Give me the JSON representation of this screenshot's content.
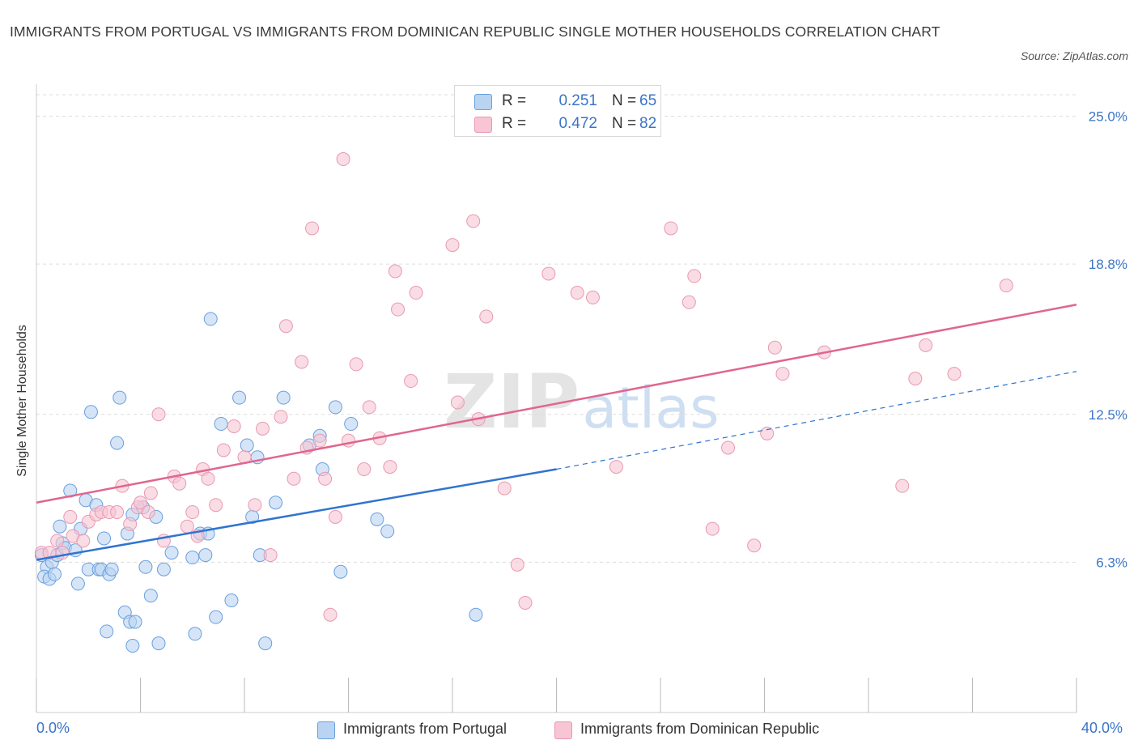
{
  "title": "IMMIGRANTS FROM PORTUGAL VS IMMIGRANTS FROM DOMINICAN REPUBLIC SINGLE MOTHER HOUSEHOLDS CORRELATION CHART",
  "source": "Source: ZipAtlas.com",
  "watermark": {
    "zip": "ZIP",
    "atlas": "atlas"
  },
  "colors": {
    "blue_fill": "#b9d3f2",
    "blue_stroke": "#6a9fdd",
    "blue_line": "#2f74d0",
    "pink_fill": "#f7c5d4",
    "pink_stroke": "#e899b2",
    "pink_line": "#e0668e",
    "tick_label": "#3a74c8",
    "grid": "#dddddd"
  },
  "legend_top": {
    "rows": [
      {
        "r_label": "R =",
        "r_value": "0.251",
        "n_label": "N =",
        "n_value": "65"
      },
      {
        "r_label": "R =",
        "r_value": "0.472",
        "n_label": "N =",
        "n_value": "82"
      }
    ]
  },
  "legend_bottom": {
    "items": [
      {
        "label": "Immigrants from Portugal"
      },
      {
        "label": "Immigrants from Dominican Republic"
      }
    ]
  },
  "chart_data": {
    "type": "scatter",
    "title": "IMMIGRANTS FROM PORTUGAL VS IMMIGRANTS FROM DOMINICAN REPUBLIC SINGLE MOTHER HOUSEHOLDS CORRELATION CHART",
    "xlabel": "",
    "ylabel": "Single Mother Households",
    "xlim": [
      0,
      40
    ],
    "ylim": [
      0,
      25.9
    ],
    "x_tick_labels": [
      {
        "value": 0,
        "label": "0.0%"
      },
      {
        "value": 40,
        "label": "40.0%"
      }
    ],
    "y_ticks": [
      {
        "value": 6.3,
        "label": "6.3%"
      },
      {
        "value": 12.5,
        "label": "12.5%"
      },
      {
        "value": 18.8,
        "label": "18.8%"
      },
      {
        "value": 25.0,
        "label": "25.0%"
      }
    ],
    "grid": true,
    "legend_position": "bottom",
    "series": [
      {
        "name": "Immigrants from Portugal",
        "color": "blue",
        "R": 0.251,
        "N": 65,
        "trend": {
          "x": [
            0,
            20
          ],
          "y": [
            6.4,
            10.2
          ]
        },
        "trend_dashed": {
          "x": [
            20,
            40
          ],
          "y": [
            10.2,
            14.3
          ]
        },
        "points": [
          [
            0.2,
            6.6
          ],
          [
            0.4,
            6.1
          ],
          [
            0.3,
            5.7
          ],
          [
            0.5,
            5.6
          ],
          [
            0.6,
            6.3
          ],
          [
            0.7,
            5.8
          ],
          [
            0.8,
            6.6
          ],
          [
            0.9,
            7.8
          ],
          [
            1.0,
            7.1
          ],
          [
            1.1,
            6.9
          ],
          [
            1.3,
            9.3
          ],
          [
            1.5,
            6.8
          ],
          [
            1.6,
            5.4
          ],
          [
            1.7,
            7.7
          ],
          [
            1.9,
            8.9
          ],
          [
            2.0,
            6.0
          ],
          [
            2.1,
            12.6
          ],
          [
            2.3,
            8.7
          ],
          [
            2.4,
            6.0
          ],
          [
            2.5,
            6.0
          ],
          [
            2.6,
            7.3
          ],
          [
            2.7,
            3.4
          ],
          [
            2.8,
            5.8
          ],
          [
            2.9,
            6.0
          ],
          [
            3.1,
            11.3
          ],
          [
            3.2,
            13.2
          ],
          [
            3.4,
            4.2
          ],
          [
            3.5,
            7.5
          ],
          [
            3.6,
            3.8
          ],
          [
            3.7,
            2.8
          ],
          [
            3.8,
            3.8
          ],
          [
            4.1,
            8.6
          ],
          [
            4.2,
            6.1
          ],
          [
            4.4,
            4.9
          ],
          [
            4.6,
            8.2
          ],
          [
            4.7,
            2.9
          ],
          [
            4.9,
            6.0
          ],
          [
            5.2,
            6.7
          ],
          [
            6.0,
            6.5
          ],
          [
            6.1,
            3.3
          ],
          [
            6.3,
            7.5
          ],
          [
            6.6,
            7.5
          ],
          [
            6.7,
            16.5
          ],
          [
            6.9,
            4.0
          ],
          [
            7.1,
            12.1
          ],
          [
            7.5,
            4.7
          ],
          [
            7.8,
            13.2
          ],
          [
            8.1,
            11.2
          ],
          [
            8.3,
            8.2
          ],
          [
            8.5,
            10.7
          ],
          [
            8.6,
            6.6
          ],
          [
            8.8,
            2.9
          ],
          [
            9.2,
            8.8
          ],
          [
            9.5,
            13.2
          ],
          [
            10.5,
            11.2
          ],
          [
            10.9,
            11.6
          ],
          [
            11.0,
            10.2
          ],
          [
            11.5,
            12.8
          ],
          [
            11.7,
            5.9
          ],
          [
            12.1,
            12.1
          ],
          [
            13.1,
            8.1
          ],
          [
            13.5,
            7.6
          ],
          [
            16.9,
            4.1
          ],
          [
            6.5,
            6.6
          ],
          [
            3.7,
            8.3
          ]
        ]
      },
      {
        "name": "Immigrants from Dominican Republic",
        "color": "pink",
        "R": 0.472,
        "N": 82,
        "trend": {
          "x": [
            0,
            40
          ],
          "y": [
            8.8,
            17.1
          ]
        },
        "points": [
          [
            0.2,
            6.7
          ],
          [
            0.5,
            6.7
          ],
          [
            0.8,
            7.2
          ],
          [
            1.0,
            6.7
          ],
          [
            1.3,
            8.2
          ],
          [
            1.4,
            7.4
          ],
          [
            1.8,
            7.2
          ],
          [
            2.0,
            8.0
          ],
          [
            2.3,
            8.3
          ],
          [
            2.5,
            8.4
          ],
          [
            2.8,
            8.4
          ],
          [
            3.1,
            8.4
          ],
          [
            3.3,
            9.5
          ],
          [
            3.6,
            7.9
          ],
          [
            3.9,
            8.6
          ],
          [
            4.0,
            8.8
          ],
          [
            4.3,
            8.4
          ],
          [
            4.4,
            9.2
          ],
          [
            4.7,
            12.5
          ],
          [
            4.9,
            7.2
          ],
          [
            5.3,
            9.9
          ],
          [
            5.5,
            9.6
          ],
          [
            5.8,
            7.8
          ],
          [
            6.0,
            8.4
          ],
          [
            6.2,
            7.4
          ],
          [
            6.4,
            10.2
          ],
          [
            6.6,
            9.8
          ],
          [
            6.9,
            8.7
          ],
          [
            7.2,
            11.0
          ],
          [
            7.6,
            12.0
          ],
          [
            8.0,
            10.7
          ],
          [
            8.4,
            8.7
          ],
          [
            8.7,
            11.9
          ],
          [
            9.0,
            6.6
          ],
          [
            9.4,
            12.4
          ],
          [
            9.6,
            16.2
          ],
          [
            9.9,
            9.8
          ],
          [
            10.2,
            14.7
          ],
          [
            10.4,
            11.1
          ],
          [
            10.6,
            20.3
          ],
          [
            10.9,
            11.4
          ],
          [
            11.1,
            9.8
          ],
          [
            11.3,
            4.1
          ],
          [
            11.5,
            8.2
          ],
          [
            11.8,
            23.2
          ],
          [
            12.0,
            11.4
          ],
          [
            12.3,
            14.6
          ],
          [
            12.6,
            10.2
          ],
          [
            12.8,
            12.8
          ],
          [
            13.2,
            11.5
          ],
          [
            13.6,
            10.3
          ],
          [
            13.8,
            18.5
          ],
          [
            13.9,
            16.9
          ],
          [
            14.4,
            13.9
          ],
          [
            14.6,
            17.6
          ],
          [
            16.0,
            19.6
          ],
          [
            16.2,
            13.0
          ],
          [
            16.8,
            20.6
          ],
          [
            17.0,
            12.3
          ],
          [
            17.3,
            16.6
          ],
          [
            18.0,
            9.4
          ],
          [
            18.5,
            6.2
          ],
          [
            18.8,
            4.6
          ],
          [
            19.7,
            18.4
          ],
          [
            20.8,
            17.6
          ],
          [
            21.4,
            17.4
          ],
          [
            22.3,
            10.3
          ],
          [
            24.4,
            20.3
          ],
          [
            25.1,
            17.2
          ],
          [
            25.3,
            18.3
          ],
          [
            26.0,
            7.7
          ],
          [
            26.6,
            11.1
          ],
          [
            27.6,
            7.0
          ],
          [
            28.1,
            11.7
          ],
          [
            28.4,
            15.3
          ],
          [
            28.7,
            14.2
          ],
          [
            30.3,
            15.1
          ],
          [
            33.3,
            9.5
          ],
          [
            33.8,
            14.0
          ],
          [
            34.2,
            15.4
          ],
          [
            35.3,
            14.2
          ],
          [
            37.3,
            17.9
          ]
        ]
      }
    ]
  }
}
